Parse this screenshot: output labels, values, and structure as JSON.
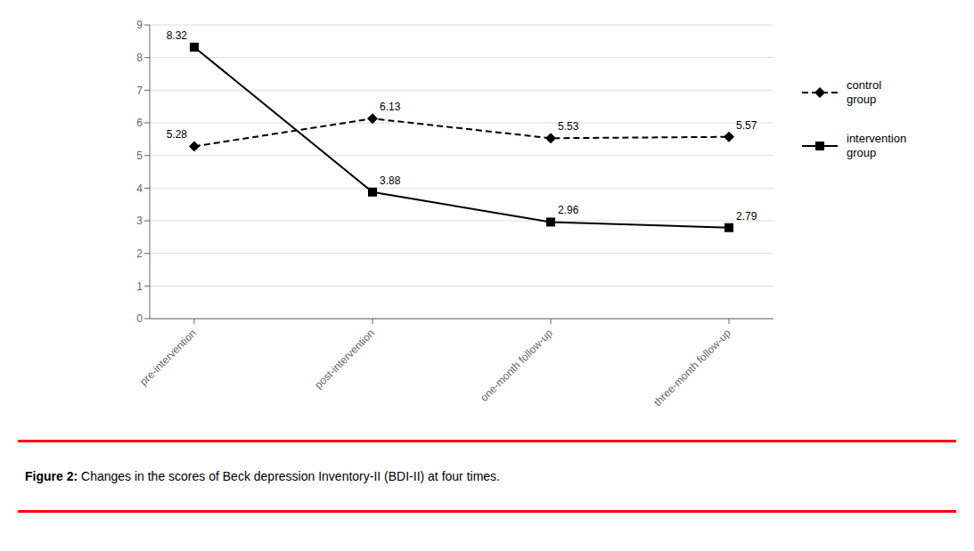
{
  "chart_data": {
    "type": "line",
    "categories": [
      "pre-intervention",
      "post-intervention",
      "one-month follow-up",
      "three-month follow-up"
    ],
    "series": [
      {
        "name": "control\ngroup",
        "color": "#000000",
        "values": [
          5.28,
          6.13,
          5.53,
          5.57
        ],
        "marker": "diamond",
        "line_style": "dashed"
      },
      {
        "name": "intervention\ngroup",
        "color": "#000000",
        "values": [
          8.32,
          3.88,
          2.96,
          2.79
        ],
        "marker": "square",
        "line_style": "solid"
      }
    ],
    "ylim": [
      0,
      9
    ],
    "yticks": [
      0,
      1,
      2,
      3,
      4,
      5,
      6,
      7,
      8,
      9
    ],
    "grid": true,
    "legend": "right",
    "data_labels": true,
    "annotations": [
      "Figure 2:",
      "Changes in the scores of Beck depression Inventory-II (BDI-II) at four times."
    ]
  }
}
